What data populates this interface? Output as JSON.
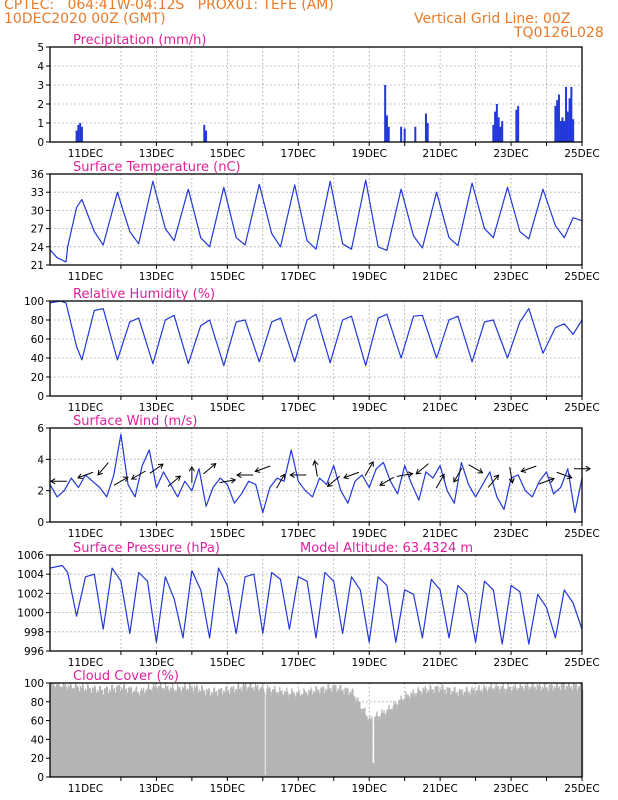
{
  "header": {
    "line1": "CPTEC:   064:41W-04:12S   PROX01: TEFE (AM)",
    "line2": "10DEC2020 00Z (GMT)",
    "right1": "Vertical Grid Line: 00Z",
    "right2": "TQ0126L028"
  },
  "colors": {
    "header": "#e87a2a",
    "title": "#e0209a",
    "line": "#2238d8",
    "cloud": "#b4b4b4",
    "grid": "#9a9a9a"
  },
  "x_labels": [
    "11DEC",
    "13DEC",
    "15DEC",
    "17DEC",
    "19DEC",
    "21DEC",
    "23DEC",
    "25DEC"
  ],
  "chart_data": [
    {
      "type": "bar",
      "title": "Precipitation (mm/h)",
      "xlabel": "",
      "ylabel": "",
      "ylim": [
        0,
        5
      ],
      "yticks": [
        "0",
        "1",
        "2",
        "3",
        "4",
        "5"
      ],
      "x_unit": "days since 10DEC2020 00Z",
      "x": [
        0.75,
        0.8,
        0.85,
        0.9,
        4.35,
        4.4,
        9.45,
        9.5,
        9.55,
        9.9,
        10.0,
        10.3,
        10.6,
        10.65,
        12.5,
        12.55,
        12.6,
        12.65,
        12.7,
        12.75,
        13.15,
        13.2,
        14.25,
        14.3,
        14.35,
        14.4,
        14.45,
        14.5,
        14.55,
        14.6,
        14.65,
        14.7,
        14.75
      ],
      "values": [
        0.6,
        0.9,
        1.0,
        0.8,
        0.9,
        0.6,
        3.0,
        1.4,
        0.8,
        0.8,
        0.7,
        0.8,
        1.5,
        1.0,
        0.9,
        1.6,
        2.0,
        1.3,
        0.8,
        1.1,
        1.7,
        1.9,
        1.9,
        2.2,
        2.5,
        1.1,
        1.3,
        1.1,
        2.9,
        1.6,
        2.3,
        2.9,
        1.2
      ]
    },
    {
      "type": "line",
      "title": "Surface Temperature (nC)",
      "ylim": [
        21,
        36
      ],
      "yticks": [
        "21",
        "24",
        "27",
        "30",
        "33",
        "36"
      ],
      "x_unit": "days since 10DEC2020 00Z",
      "x": [
        0,
        0.2,
        0.45,
        0.5,
        0.75,
        0.9,
        1.25,
        1.5,
        1.9,
        2.25,
        2.5,
        2.9,
        3.25,
        3.5,
        3.9,
        4.25,
        4.5,
        4.9,
        5.25,
        5.5,
        5.9,
        6.25,
        6.5,
        6.9,
        7.25,
        7.5,
        7.9,
        8.25,
        8.5,
        8.9,
        9.25,
        9.5,
        9.9,
        10.25,
        10.5,
        10.9,
        11.25,
        11.5,
        11.9,
        12.25,
        12.5,
        12.9,
        13.25,
        13.5,
        13.9,
        14.25,
        14.5,
        14.75,
        15.0
      ],
      "values": [
        23.5,
        22.2,
        21.5,
        24.0,
        30.5,
        31.8,
        26.5,
        24.3,
        33.0,
        26.5,
        24.5,
        34.8,
        27.0,
        25.0,
        33.5,
        25.5,
        24.0,
        33.8,
        25.5,
        24.3,
        34.3,
        26.2,
        24.0,
        34.2,
        25.0,
        23.6,
        34.8,
        24.5,
        23.6,
        35.0,
        24.0,
        23.4,
        33.5,
        25.8,
        23.8,
        33.0,
        25.5,
        24.2,
        34.5,
        27.0,
        25.5,
        33.8,
        26.5,
        25.3,
        33.5,
        27.5,
        25.5,
        28.8,
        28.3
      ]
    },
    {
      "type": "line",
      "title": "Relative Humidity (%)",
      "ylim": [
        0,
        100
      ],
      "yticks": [
        "0",
        "20",
        "40",
        "60",
        "80",
        "100"
      ],
      "x_unit": "days since 10DEC2020 00Z",
      "x": [
        0,
        0.3,
        0.45,
        0.75,
        0.9,
        1.25,
        1.5,
        1.9,
        2.25,
        2.5,
        2.9,
        3.25,
        3.5,
        3.9,
        4.25,
        4.5,
        4.9,
        5.25,
        5.5,
        5.9,
        6.25,
        6.5,
        6.9,
        7.25,
        7.5,
        7.9,
        8.25,
        8.5,
        8.9,
        9.25,
        9.5,
        9.9,
        10.25,
        10.5,
        10.9,
        11.25,
        11.5,
        11.9,
        12.25,
        12.5,
        12.9,
        13.25,
        13.5,
        13.9,
        14.25,
        14.5,
        14.75,
        15.0
      ],
      "values": [
        98,
        100,
        98,
        52,
        38,
        90,
        92,
        38,
        78,
        82,
        34,
        80,
        85,
        34,
        74,
        80,
        32,
        78,
        80,
        36,
        78,
        82,
        36,
        80,
        86,
        35,
        80,
        84,
        32,
        82,
        86,
        40,
        84,
        85,
        40,
        80,
        84,
        36,
        78,
        80,
        40,
        78,
        92,
        45,
        72,
        76,
        65,
        80
      ]
    },
    {
      "type": "line",
      "title": "Surface Wind (m/s)",
      "ylim": [
        0,
        6
      ],
      "yticks": [
        "0",
        "2",
        "4",
        "6"
      ],
      "x_unit": "days since 10DEC2020 00Z",
      "x": [
        0,
        0.2,
        0.4,
        0.6,
        0.8,
        1.0,
        1.2,
        1.4,
        1.6,
        1.8,
        2.0,
        2.2,
        2.4,
        2.6,
        2.8,
        3.0,
        3.2,
        3.4,
        3.6,
        3.8,
        4.0,
        4.2,
        4.4,
        4.6,
        4.8,
        5.0,
        5.2,
        5.4,
        5.6,
        5.8,
        6.0,
        6.2,
        6.4,
        6.6,
        6.8,
        7.0,
        7.2,
        7.4,
        7.6,
        7.8,
        8.0,
        8.2,
        8.4,
        8.6,
        8.8,
        9.0,
        9.2,
        9.4,
        9.6,
        9.8,
        10.0,
        10.2,
        10.4,
        10.6,
        10.8,
        11.0,
        11.2,
        11.4,
        11.6,
        11.8,
        12.0,
        12.2,
        12.4,
        12.6,
        12.8,
        13.0,
        13.2,
        13.4,
        13.6,
        13.8,
        14.0,
        14.2,
        14.4,
        14.6,
        14.8,
        15.0
      ],
      "values": [
        2.4,
        1.6,
        2.0,
        2.8,
        2.2,
        3.0,
        2.6,
        2.2,
        1.6,
        3.0,
        5.6,
        2.4,
        1.6,
        3.6,
        4.6,
        2.2,
        3.2,
        2.4,
        1.6,
        2.6,
        2.0,
        3.4,
        1.0,
        2.2,
        2.8,
        2.4,
        1.2,
        1.8,
        2.6,
        2.4,
        0.6,
        2.2,
        2.8,
        2.6,
        4.6,
        2.6,
        2.0,
        1.6,
        2.8,
        2.4,
        3.6,
        2.0,
        1.2,
        2.6,
        3.0,
        2.2,
        3.4,
        3.8,
        2.6,
        1.8,
        3.6,
        2.4,
        1.4,
        3.2,
        2.8,
        3.6,
        2.0,
        1.2,
        3.8,
        2.4,
        1.6,
        2.4,
        3.2,
        1.6,
        0.8,
        2.8,
        3.0,
        2.0,
        1.6,
        2.6,
        3.2,
        1.8,
        2.2,
        3.4,
        0.6,
        2.8
      ],
      "arrows_x": [
        0.25,
        1.0,
        1.5,
        2.0,
        2.5,
        3.0,
        3.5,
        4.0,
        4.5,
        5.0,
        5.5,
        6.0,
        6.5,
        7.0,
        7.5,
        8.0,
        8.5,
        9.0,
        9.5,
        10.0,
        10.5,
        11.0,
        11.5,
        12.0,
        12.5,
        13.0,
        13.5,
        14.0,
        14.5,
        15.0
      ],
      "arrows_dir": [
        180,
        200,
        230,
        30,
        210,
        35,
        40,
        90,
        40,
        10,
        180,
        200,
        60,
        180,
        100,
        220,
        200,
        60,
        210,
        10,
        220,
        60,
        240,
        330,
        50,
        280,
        200,
        20,
        340,
        0
      ]
    },
    {
      "type": "line",
      "title": "Surface Pressure (hPa)",
      "annotation": "Model Altitude: 63.4324 m",
      "ylim": [
        995,
        1006
      ],
      "yticks": [
        "996",
        "998",
        "1000",
        "1002",
        "1004",
        "1006"
      ],
      "x_unit": "days since 10DEC2020 00Z",
      "x": [
        0,
        0.35,
        0.5,
        0.75,
        1.0,
        1.25,
        1.5,
        1.75,
        2.0,
        2.25,
        2.5,
        2.75,
        3.0,
        3.25,
        3.5,
        3.75,
        4.0,
        4.25,
        4.5,
        4.75,
        5.0,
        5.25,
        5.5,
        5.75,
        6.0,
        6.25,
        6.5,
        6.75,
        7.0,
        7.25,
        7.5,
        7.75,
        8.0,
        8.25,
        8.5,
        8.75,
        9.0,
        9.25,
        9.5,
        9.75,
        10.0,
        10.25,
        10.5,
        10.75,
        11.0,
        11.25,
        11.5,
        11.75,
        12.0,
        12.25,
        12.5,
        12.75,
        13.0,
        13.25,
        13.5,
        13.75,
        14.0,
        14.25,
        14.5,
        14.75,
        15.0
      ],
      "values": [
        1004.5,
        1004.8,
        1004.0,
        999.0,
        1003.5,
        1003.8,
        997.5,
        1004.5,
        1003.0,
        997.0,
        1004.0,
        1003.0,
        996.0,
        1003.5,
        1001.0,
        996.5,
        1004.2,
        1002.0,
        996.5,
        1004.5,
        1002.5,
        997.0,
        1003.5,
        1003.8,
        997.0,
        1004.0,
        1003.2,
        997.5,
        1003.5,
        1003.0,
        996.5,
        1004.0,
        1003.0,
        997.0,
        1003.5,
        1002.0,
        996.0,
        1003.5,
        1002.5,
        996.0,
        1002.0,
        1001.5,
        996.5,
        1003.2,
        1002.0,
        996.5,
        1002.5,
        1001.5,
        996.0,
        1003.0,
        1002.0,
        995.8,
        1002.5,
        1001.8,
        995.8,
        1001.5,
        1000.0,
        996.5,
        1002.0,
        1000.5,
        997.5
      ]
    },
    {
      "type": "bar",
      "title": "Cloud Cover (%)",
      "ylim": [
        0,
        100
      ],
      "yticks": [
        "0",
        "20",
        "40",
        "60",
        "80",
        "100"
      ],
      "x_unit": "days since 10DEC2020 00Z",
      "x": [
        0,
        0.5,
        1,
        1.5,
        2,
        2.5,
        3,
        3.5,
        4,
        4.5,
        5,
        5.5,
        6,
        6.5,
        7,
        7.5,
        8,
        8.5,
        9,
        9.5,
        10,
        10.5,
        11,
        11.5,
        12,
        12.5,
        13,
        13.5,
        14,
        14.5,
        15
      ],
      "values": [
        98,
        96,
        94,
        92,
        95,
        90,
        96,
        93,
        95,
        90,
        92,
        96,
        94,
        90,
        88,
        92,
        95,
        90,
        60,
        70,
        85,
        92,
        94,
        90,
        92,
        95,
        94,
        96,
        95,
        97,
        96
      ]
    }
  ]
}
